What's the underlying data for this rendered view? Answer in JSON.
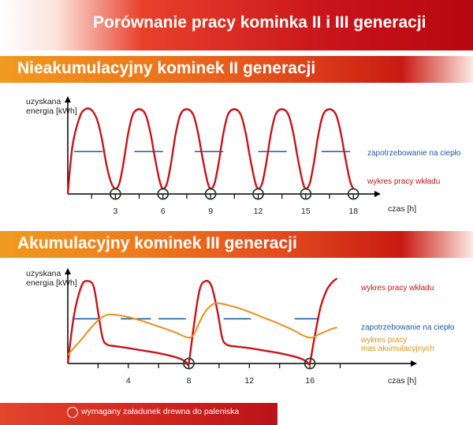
{
  "header": {
    "title": "Porównanie pracy kominka II i III generacji"
  },
  "footer": {
    "legend_text": "wymagany załadunek drewna do paleniska"
  },
  "colors": {
    "work_curve": "#c8141a",
    "demand_line": "#1f5aa6",
    "accum_curve": "#e9901a",
    "axis": "#000000"
  },
  "chart_data": [
    {
      "type": "line",
      "title": "Nieakumulacyjny kominek II generacji",
      "ylabel": "uzyskana\nenergia [kWh]",
      "xlabel": "czas [h]",
      "x_ticks": [
        3,
        6,
        9,
        12,
        15,
        18
      ],
      "xlim": [
        0,
        18.6
      ],
      "ylim": [
        0,
        1
      ],
      "grid": false,
      "series": [
        {
          "name": "wykres pracy wkładu",
          "x": [
            0,
            0.3,
            0.75,
            1.1,
            1.5,
            1.85,
            2.15,
            2.45,
            2.75,
            3.0,
            3.25,
            3.5,
            3.8,
            4.1,
            4.5,
            4.9,
            5.2,
            5.5,
            5.8,
            6.0,
            6.25,
            6.5,
            6.8,
            7.1,
            7.5,
            7.9,
            8.2,
            8.5,
            8.8,
            9.0,
            9.25,
            9.5,
            9.8,
            10.1,
            10.5,
            10.9,
            11.2,
            11.5,
            11.8,
            12.0,
            12.25,
            12.5,
            12.8,
            13.1,
            13.5,
            13.9,
            14.2,
            14.5,
            14.8,
            15.0,
            15.25,
            15.5,
            15.8,
            16.1,
            16.5,
            16.9,
            17.2,
            17.5,
            17.8,
            18.0
          ],
          "y": [
            0,
            0.55,
            0.87,
            0.96,
            0.95,
            0.84,
            0.62,
            0.32,
            0.12,
            0.06,
            0.12,
            0.34,
            0.68,
            0.9,
            0.96,
            0.9,
            0.7,
            0.4,
            0.14,
            0.06,
            0.12,
            0.34,
            0.68,
            0.9,
            0.96,
            0.9,
            0.7,
            0.4,
            0.14,
            0.06,
            0.12,
            0.34,
            0.68,
            0.9,
            0.96,
            0.9,
            0.7,
            0.4,
            0.14,
            0.06,
            0.12,
            0.34,
            0.68,
            0.9,
            0.96,
            0.9,
            0.7,
            0.4,
            0.14,
            0.06,
            0.12,
            0.34,
            0.68,
            0.9,
            0.96,
            0.9,
            0.7,
            0.4,
            0.14,
            0.06
          ]
        },
        {
          "name": "zapotrzebowanie na ciepło",
          "segments": [
            [
              0.4,
              2.2
            ],
            [
              4.2,
              6.0
            ],
            [
              8.0,
              9.8
            ],
            [
              12.0,
              13.8
            ],
            [
              16.0,
              17.8
            ]
          ],
          "value": 0.48
        }
      ],
      "loads_at": [
        3,
        6,
        9,
        12,
        15,
        18
      ]
    },
    {
      "type": "line",
      "title": "Akumulacyjny kominek III generacji",
      "ylabel": "uzyskana\nenergia [kWh]",
      "xlabel": "czas [h]",
      "x_ticks": [
        4,
        8,
        12,
        16
      ],
      "xlim": [
        0,
        18.6
      ],
      "ylim": [
        0,
        1
      ],
      "grid": false,
      "series": [
        {
          "name": "wykres pracy wkładu",
          "x": [
            0,
            0.4,
            0.9,
            1.3,
            1.7,
            2.0,
            2.3,
            2.6,
            3.2,
            4.0,
            5.0,
            6.0,
            7.0,
            7.5,
            7.8,
            8.0,
            8.3,
            8.7,
            9.1,
            9.5,
            9.9,
            10.2,
            10.5,
            11.0,
            12.0,
            13.0,
            14.0,
            15.0,
            15.5,
            15.8,
            16.0,
            16.3,
            16.7,
            17.1,
            17.5,
            17.8
          ],
          "y": [
            0,
            0.55,
            0.9,
            0.96,
            0.9,
            0.6,
            0.3,
            0.22,
            0.2,
            0.18,
            0.15,
            0.12,
            0.08,
            0.05,
            0.02,
            0.01,
            0.4,
            0.85,
            0.96,
            0.9,
            0.6,
            0.3,
            0.22,
            0.2,
            0.18,
            0.15,
            0.12,
            0.08,
            0.05,
            0.02,
            0.01,
            0.3,
            0.65,
            0.85,
            0.95,
            0.99
          ]
        },
        {
          "name": "zapotrzebowanie na ciepło",
          "segments": [
            [
              0.3,
              2.2
            ],
            [
              3.5,
              5.5
            ],
            [
              6.0,
              7.8
            ],
            [
              10.3,
              12.1
            ],
            [
              15.0,
              16.6
            ]
          ],
          "value": 0.52
        },
        {
          "name": "wykres pracy\nmas akumulacyjnych",
          "x": [
            0,
            0.5,
            1.0,
            1.5,
            2.0,
            2.5,
            3.0,
            4.0,
            5.0,
            6.0,
            7.0,
            7.5,
            8.0,
            8.3,
            8.6,
            9.0,
            9.5,
            10.0,
            11.0,
            12.0,
            13.0,
            14.0,
            15.0,
            15.5,
            16.0,
            16.3,
            16.6,
            17.0,
            17.4,
            17.8
          ],
          "y": [
            0.1,
            0.2,
            0.3,
            0.41,
            0.5,
            0.56,
            0.57,
            0.54,
            0.49,
            0.43,
            0.37,
            0.33,
            0.3,
            0.33,
            0.44,
            0.58,
            0.68,
            0.7,
            0.66,
            0.6,
            0.53,
            0.46,
            0.38,
            0.33,
            0.3,
            0.31,
            0.34,
            0.37,
            0.4,
            0.42
          ]
        }
      ],
      "loads_at": [
        8,
        16
      ]
    }
  ],
  "axis_labels": {
    "time_unit": "czas [h]"
  }
}
